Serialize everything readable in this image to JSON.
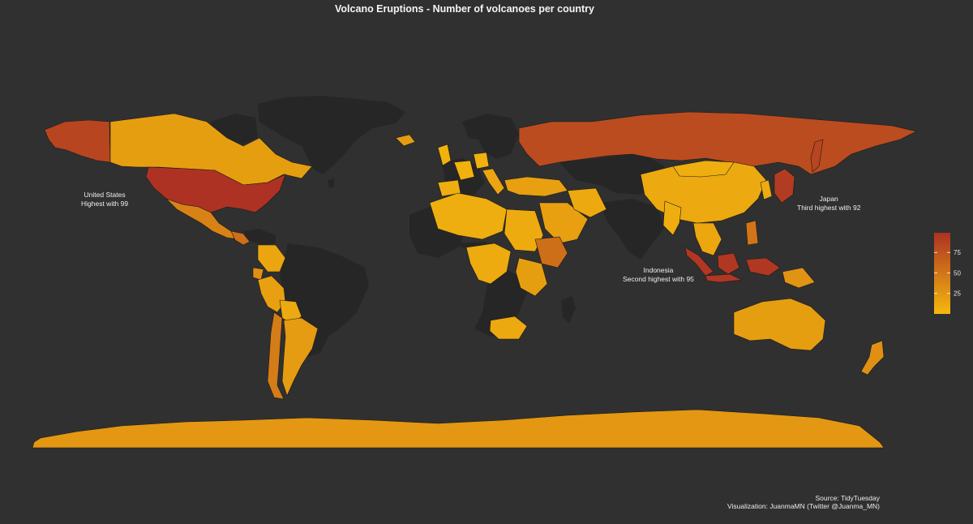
{
  "title": "Volcano Eruptions - Number of volcanoes per country",
  "colors": {
    "background": "#303030",
    "no_data_land": "#262626",
    "low": "#f5b90d",
    "high": "#ad3223",
    "border": "#1a1a1a"
  },
  "annotations": [
    {
      "country": "United States",
      "text": "Highest with 99"
    },
    {
      "country": "Japan",
      "text": "Third highest  with 92"
    },
    {
      "country": "Indonesia",
      "text": "Second highest  with 95"
    }
  ],
  "legend": {
    "min": 0,
    "max": 99,
    "ticks": [
      25,
      50,
      75
    ],
    "tick_labels": [
      "25",
      "50",
      "75"
    ]
  },
  "caption": {
    "source": "Source: TidyTuesday",
    "credit": "Visualization: JuanmaMN (Twitter @Juanma_MN)"
  }
}
